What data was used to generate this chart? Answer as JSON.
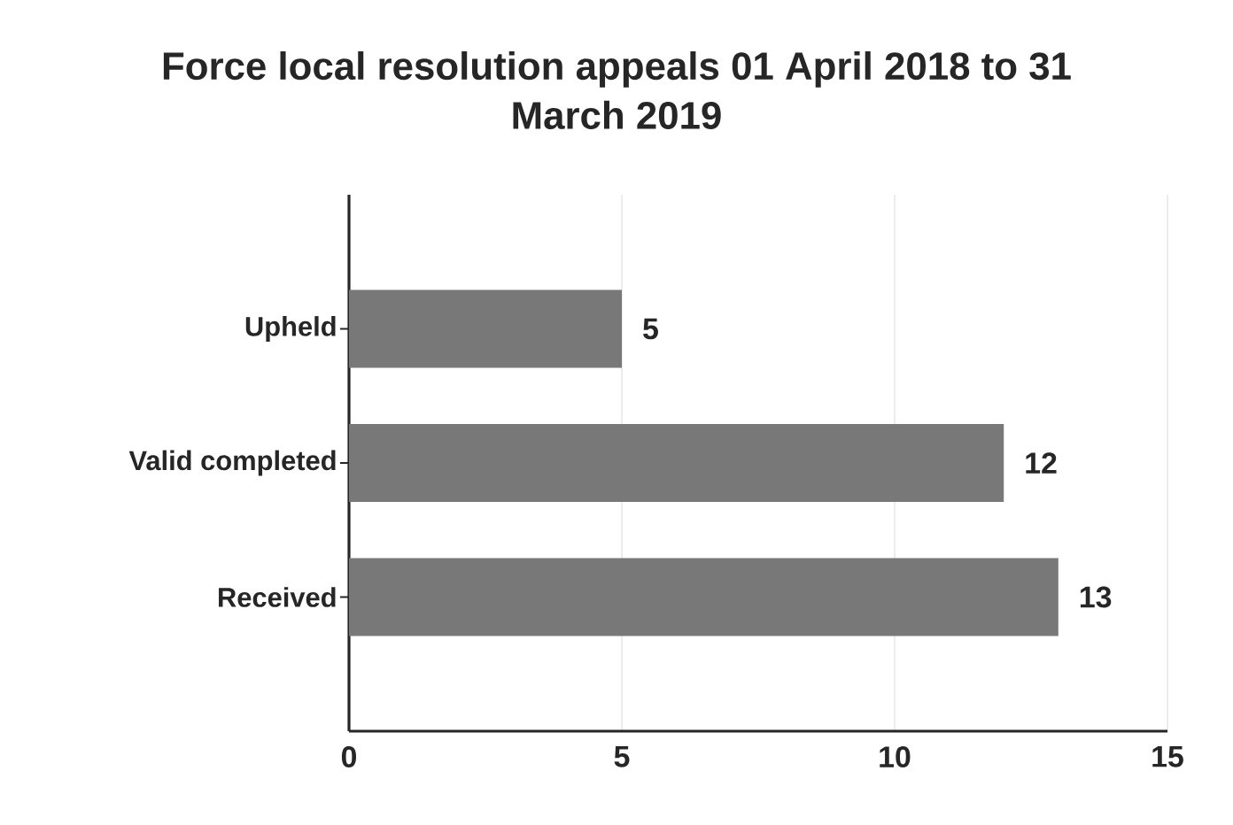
{
  "chart_data": {
    "type": "bar",
    "orientation": "horizontal",
    "title": "Force local resolution appeals 01 April 2018 to 31 March 2019",
    "categories": [
      "Upheld",
      "Valid completed",
      "Received"
    ],
    "values": [
      5,
      12,
      13
    ],
    "color": "#787878",
    "xlim": [
      0,
      15
    ],
    "xticks": [
      0,
      5,
      10,
      15
    ],
    "grid": "x",
    "data_labels": true
  }
}
